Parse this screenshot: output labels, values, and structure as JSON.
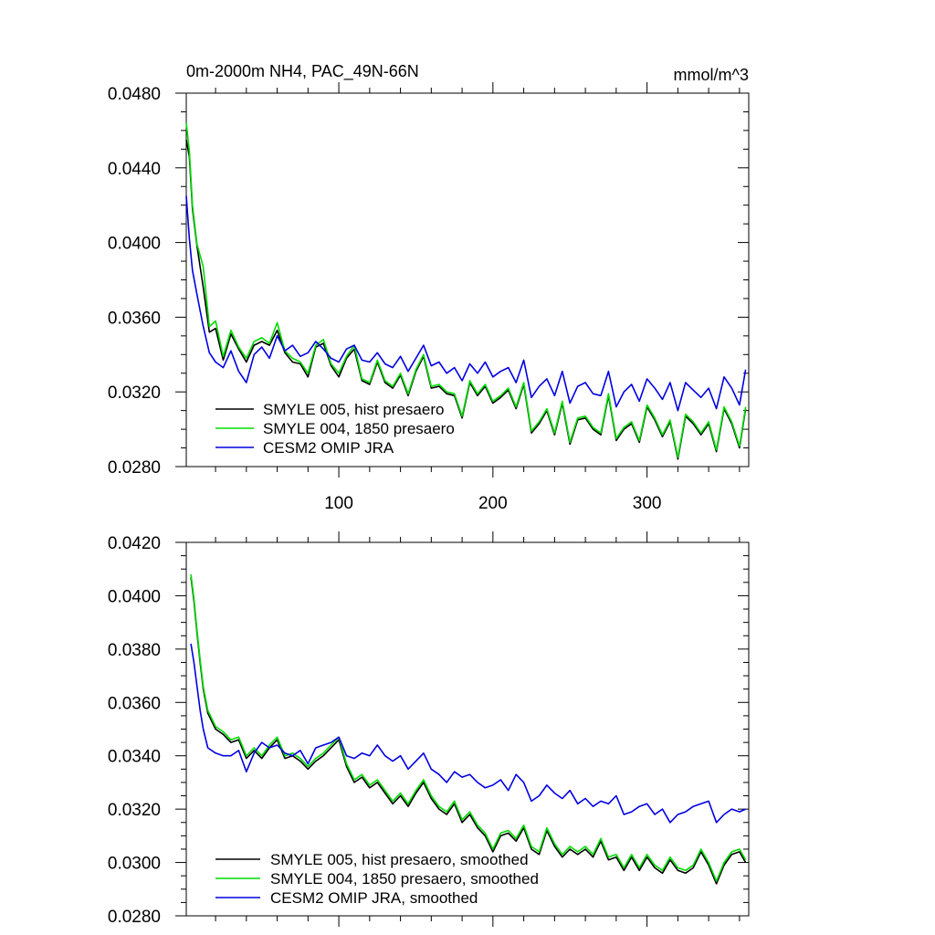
{
  "chart_data": [
    {
      "type": "line",
      "title": "0m-2000m NH4, PAC_49N-66N",
      "units": "mmol/m^3",
      "xlim": [
        1,
        366
      ],
      "ylim": [
        0.028,
        0.048
      ],
      "yticks": [
        "0.0280",
        "0.0320",
        "0.0360",
        "0.0400",
        "0.0440",
        "0.0480"
      ],
      "xticks": [
        "100",
        "200",
        "300"
      ],
      "legend_position": "bottom-left",
      "series": [
        {
          "name": "SMYLE 005, hist presaero",
          "color": "#000000",
          "x": [
            1,
            3,
            5,
            8,
            12,
            16,
            20,
            25,
            30,
            35,
            40,
            45,
            50,
            55,
            60,
            65,
            70,
            75,
            80,
            85,
            90,
            95,
            100,
            105,
            110,
            115,
            120,
            125,
            130,
            135,
            140,
            145,
            150,
            155,
            160,
            165,
            170,
            175,
            180,
            185,
            190,
            195,
            200,
            205,
            210,
            215,
            220,
            225,
            230,
            235,
            240,
            245,
            250,
            255,
            260,
            265,
            270,
            275,
            280,
            285,
            290,
            295,
            300,
            305,
            310,
            315,
            320,
            325,
            330,
            335,
            340,
            345,
            350,
            355,
            360,
            364
          ],
          "values": [
            0.0455,
            0.0446,
            0.0418,
            0.0398,
            0.0376,
            0.0352,
            0.0354,
            0.0337,
            0.0351,
            0.0343,
            0.0336,
            0.0345,
            0.0347,
            0.0345,
            0.0353,
            0.0341,
            0.0336,
            0.0335,
            0.0328,
            0.0344,
            0.0346,
            0.0334,
            0.0328,
            0.0338,
            0.0343,
            0.0326,
            0.0324,
            0.0336,
            0.0325,
            0.0322,
            0.0329,
            0.0318,
            0.0331,
            0.0339,
            0.0322,
            0.0323,
            0.0319,
            0.0318,
            0.0306,
            0.0325,
            0.0318,
            0.0323,
            0.0314,
            0.0317,
            0.0321,
            0.0311,
            0.0324,
            0.0298,
            0.0303,
            0.031,
            0.0297,
            0.0314,
            0.0292,
            0.0305,
            0.0306,
            0.03,
            0.0297,
            0.0318,
            0.0294,
            0.03,
            0.0303,
            0.0293,
            0.0312,
            0.0305,
            0.0296,
            0.0304,
            0.0284,
            0.0307,
            0.0303,
            0.0297,
            0.0303,
            0.0288,
            0.0311,
            0.0303,
            0.029,
            0.0311
          ]
        },
        {
          "name": "SMYLE 004, 1850 presaero",
          "color": "#00dd00",
          "x": [
            1,
            3,
            5,
            8,
            12,
            16,
            20,
            25,
            30,
            35,
            40,
            45,
            50,
            55,
            60,
            65,
            70,
            75,
            80,
            85,
            90,
            95,
            100,
            105,
            110,
            115,
            120,
            125,
            130,
            135,
            140,
            145,
            150,
            155,
            160,
            165,
            170,
            175,
            180,
            185,
            190,
            195,
            200,
            205,
            210,
            215,
            220,
            225,
            230,
            235,
            240,
            245,
            250,
            255,
            260,
            265,
            270,
            275,
            280,
            285,
            290,
            295,
            300,
            305,
            310,
            315,
            320,
            325,
            330,
            335,
            340,
            345,
            350,
            355,
            360,
            364
          ],
          "values": [
            0.0464,
            0.0449,
            0.042,
            0.0399,
            0.0387,
            0.0355,
            0.0358,
            0.0339,
            0.0353,
            0.0344,
            0.0338,
            0.0347,
            0.0349,
            0.0346,
            0.0357,
            0.0342,
            0.0338,
            0.0336,
            0.033,
            0.0345,
            0.0348,
            0.0335,
            0.033,
            0.0339,
            0.0345,
            0.0327,
            0.0325,
            0.0337,
            0.0326,
            0.0323,
            0.033,
            0.0319,
            0.0332,
            0.034,
            0.0323,
            0.0324,
            0.032,
            0.0319,
            0.0307,
            0.0326,
            0.0319,
            0.0324,
            0.0315,
            0.0318,
            0.0322,
            0.0312,
            0.0325,
            0.0299,
            0.0304,
            0.0311,
            0.0298,
            0.0315,
            0.0293,
            0.0306,
            0.0307,
            0.0301,
            0.0298,
            0.0319,
            0.0295,
            0.0301,
            0.0304,
            0.0294,
            0.0313,
            0.0306,
            0.0297,
            0.0305,
            0.0285,
            0.0308,
            0.0304,
            0.0298,
            0.0304,
            0.0289,
            0.0312,
            0.0304,
            0.0291,
            0.0312
          ]
        },
        {
          "name": "CESM2 OMIP JRA",
          "color": "#0000e0",
          "x": [
            1,
            3,
            5,
            8,
            12,
            16,
            20,
            25,
            30,
            35,
            40,
            45,
            50,
            55,
            60,
            65,
            70,
            75,
            80,
            85,
            90,
            95,
            100,
            105,
            110,
            115,
            120,
            125,
            130,
            135,
            140,
            145,
            150,
            155,
            160,
            165,
            170,
            175,
            180,
            185,
            190,
            195,
            200,
            205,
            210,
            215,
            220,
            225,
            230,
            235,
            240,
            245,
            250,
            255,
            260,
            265,
            270,
            275,
            280,
            285,
            290,
            295,
            300,
            305,
            310,
            315,
            320,
            325,
            330,
            335,
            340,
            345,
            350,
            355,
            360,
            364
          ],
          "values": [
            0.0425,
            0.0402,
            0.0385,
            0.0372,
            0.0355,
            0.0341,
            0.0336,
            0.0333,
            0.0342,
            0.0331,
            0.0325,
            0.034,
            0.0344,
            0.0338,
            0.035,
            0.0342,
            0.0345,
            0.0339,
            0.0341,
            0.0347,
            0.0343,
            0.0338,
            0.0336,
            0.0343,
            0.0345,
            0.0337,
            0.0336,
            0.0341,
            0.0335,
            0.0333,
            0.0339,
            0.0331,
            0.0338,
            0.0345,
            0.0334,
            0.0336,
            0.033,
            0.0333,
            0.0326,
            0.0335,
            0.033,
            0.0336,
            0.0328,
            0.0331,
            0.0333,
            0.0325,
            0.0337,
            0.0317,
            0.0323,
            0.0327,
            0.0318,
            0.0331,
            0.0314,
            0.0323,
            0.0325,
            0.0319,
            0.0318,
            0.0331,
            0.0312,
            0.032,
            0.0324,
            0.0315,
            0.0327,
            0.0322,
            0.0316,
            0.0325,
            0.031,
            0.0325,
            0.0321,
            0.0317,
            0.0322,
            0.0311,
            0.0328,
            0.0322,
            0.0313,
            0.0332
          ]
        }
      ]
    },
    {
      "type": "line",
      "xlim": [
        1,
        366
      ],
      "ylim": [
        0.028,
        0.042
      ],
      "yticks": [
        "0.0280",
        "0.0300",
        "0.0320",
        "0.0340",
        "0.0360",
        "0.0380",
        "0.0400",
        "0.0420"
      ],
      "legend_position": "bottom-left",
      "series": [
        {
          "name": "SMYLE 005, hist presaero, smoothed",
          "color": "#000000",
          "x": [
            4,
            6,
            8,
            10,
            12,
            15,
            20,
            25,
            30,
            35,
            40,
            45,
            50,
            55,
            60,
            65,
            70,
            75,
            80,
            85,
            90,
            95,
            100,
            105,
            110,
            115,
            120,
            125,
            130,
            135,
            140,
            145,
            150,
            155,
            160,
            165,
            170,
            175,
            180,
            185,
            190,
            195,
            200,
            205,
            210,
            215,
            220,
            225,
            230,
            235,
            240,
            245,
            250,
            255,
            260,
            265,
            270,
            275,
            280,
            285,
            290,
            295,
            300,
            305,
            310,
            315,
            320,
            325,
            330,
            335,
            340,
            345,
            350,
            355,
            360,
            364
          ],
          "values": [
            0.0407,
            0.0398,
            0.0386,
            0.0375,
            0.0365,
            0.0356,
            0.035,
            0.0348,
            0.0345,
            0.0346,
            0.0339,
            0.0342,
            0.0339,
            0.0343,
            0.0346,
            0.0339,
            0.034,
            0.0338,
            0.0335,
            0.0338,
            0.034,
            0.0343,
            0.0346,
            0.0336,
            0.033,
            0.0332,
            0.0328,
            0.033,
            0.0326,
            0.0322,
            0.0325,
            0.0321,
            0.0326,
            0.033,
            0.0324,
            0.032,
            0.0318,
            0.0322,
            0.0315,
            0.0318,
            0.0313,
            0.031,
            0.0304,
            0.031,
            0.0311,
            0.0308,
            0.0313,
            0.0305,
            0.0303,
            0.0312,
            0.0306,
            0.0302,
            0.0305,
            0.0303,
            0.0305,
            0.0302,
            0.0308,
            0.0301,
            0.0302,
            0.0297,
            0.0302,
            0.0297,
            0.0302,
            0.0298,
            0.0296,
            0.0301,
            0.0297,
            0.0296,
            0.0298,
            0.0304,
            0.0299,
            0.0292,
            0.0299,
            0.0303,
            0.0304,
            0.03
          ]
        },
        {
          "name": "SMYLE 004, 1850 presaero, smoothed",
          "color": "#00dd00",
          "x": [
            4,
            6,
            8,
            10,
            12,
            15,
            20,
            25,
            30,
            35,
            40,
            45,
            50,
            55,
            60,
            65,
            70,
            75,
            80,
            85,
            90,
            95,
            100,
            105,
            110,
            115,
            120,
            125,
            130,
            135,
            140,
            145,
            150,
            155,
            160,
            165,
            170,
            175,
            180,
            185,
            190,
            195,
            200,
            205,
            210,
            215,
            220,
            225,
            230,
            235,
            240,
            245,
            250,
            255,
            260,
            265,
            270,
            275,
            280,
            285,
            290,
            295,
            300,
            305,
            310,
            315,
            320,
            325,
            330,
            335,
            340,
            345,
            350,
            355,
            360,
            364
          ],
          "values": [
            0.0408,
            0.0399,
            0.0387,
            0.0376,
            0.0366,
            0.0357,
            0.0351,
            0.0349,
            0.0346,
            0.0347,
            0.034,
            0.0343,
            0.034,
            0.0344,
            0.0347,
            0.034,
            0.0341,
            0.0339,
            0.0336,
            0.0339,
            0.0341,
            0.0344,
            0.0347,
            0.0337,
            0.0331,
            0.0333,
            0.0329,
            0.0331,
            0.0327,
            0.0323,
            0.0326,
            0.0322,
            0.0327,
            0.0331,
            0.0325,
            0.0321,
            0.0319,
            0.0323,
            0.0316,
            0.0319,
            0.0314,
            0.0311,
            0.0305,
            0.0311,
            0.0312,
            0.0309,
            0.0314,
            0.0306,
            0.0304,
            0.0313,
            0.0307,
            0.0303,
            0.0306,
            0.0304,
            0.0306,
            0.0303,
            0.0309,
            0.0302,
            0.0303,
            0.0298,
            0.0303,
            0.0298,
            0.0303,
            0.0299,
            0.0297,
            0.0302,
            0.0298,
            0.0297,
            0.0299,
            0.0305,
            0.03,
            0.0293,
            0.03,
            0.0304,
            0.0305,
            0.0301
          ]
        },
        {
          "name": "CESM2 OMIP JRA, smoothed",
          "color": "#0000e0",
          "x": [
            4,
            6,
            8,
            10,
            12,
            15,
            20,
            25,
            30,
            35,
            40,
            45,
            50,
            55,
            60,
            65,
            70,
            75,
            80,
            85,
            90,
            95,
            100,
            105,
            110,
            115,
            120,
            125,
            130,
            135,
            140,
            145,
            150,
            155,
            160,
            165,
            170,
            175,
            180,
            185,
            190,
            195,
            200,
            205,
            210,
            215,
            220,
            225,
            230,
            235,
            240,
            245,
            250,
            255,
            260,
            265,
            270,
            275,
            280,
            285,
            290,
            295,
            300,
            305,
            310,
            315,
            320,
            325,
            330,
            335,
            340,
            345,
            350,
            355,
            360,
            364
          ],
          "values": [
            0.0382,
            0.0375,
            0.0366,
            0.0357,
            0.035,
            0.0343,
            0.0341,
            0.034,
            0.034,
            0.0342,
            0.0334,
            0.0341,
            0.0345,
            0.0343,
            0.0344,
            0.0341,
            0.034,
            0.0342,
            0.0337,
            0.0343,
            0.0344,
            0.0345,
            0.0347,
            0.034,
            0.0339,
            0.0341,
            0.034,
            0.0344,
            0.034,
            0.0338,
            0.034,
            0.0335,
            0.0338,
            0.0341,
            0.0335,
            0.0333,
            0.033,
            0.0334,
            0.0332,
            0.0333,
            0.033,
            0.0328,
            0.0329,
            0.0331,
            0.0327,
            0.0333,
            0.033,
            0.0323,
            0.0325,
            0.0329,
            0.0326,
            0.0324,
            0.0327,
            0.0322,
            0.0324,
            0.0321,
            0.0323,
            0.0322,
            0.0325,
            0.0318,
            0.0319,
            0.0321,
            0.0322,
            0.0318,
            0.032,
            0.0315,
            0.0318,
            0.0319,
            0.0321,
            0.0322,
            0.0323,
            0.0315,
            0.0318,
            0.032,
            0.0319,
            0.032
          ]
        }
      ]
    }
  ]
}
